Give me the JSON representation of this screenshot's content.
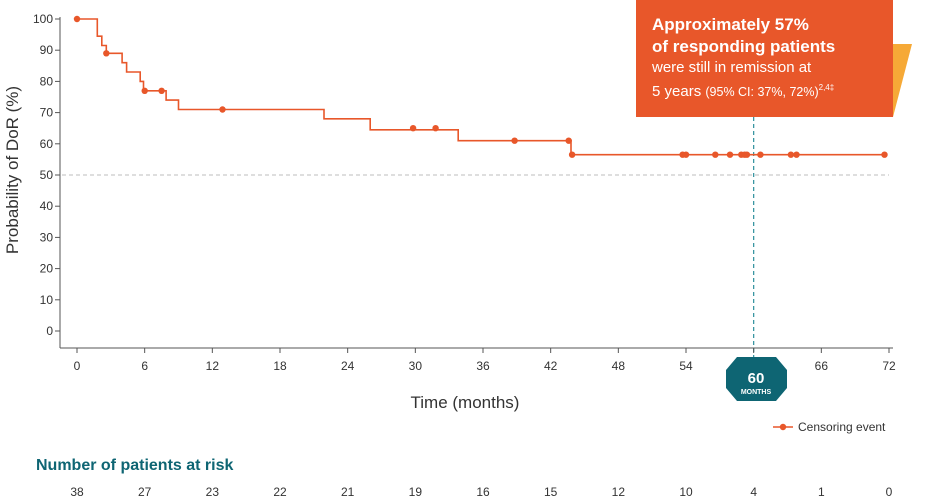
{
  "chart_data": {
    "type": "line",
    "title": "",
    "xlabel": "Time (months)",
    "ylabel": "Probability of DoR (%)",
    "xlim": [
      0,
      72
    ],
    "ylim": [
      0,
      100
    ],
    "x_ticks": [
      0,
      6,
      12,
      18,
      24,
      30,
      36,
      42,
      48,
      54,
      60,
      66,
      72
    ],
    "y_ticks": [
      0,
      10,
      20,
      30,
      40,
      50,
      60,
      70,
      80,
      90,
      100
    ],
    "reference_line_y": 50,
    "reference_line_x": 60,
    "series": [
      {
        "name": "",
        "color": "#e8572a",
        "steps": [
          [
            0,
            100
          ],
          [
            1.8,
            94.5
          ],
          [
            2.2,
            91.5
          ],
          [
            2.6,
            89
          ],
          [
            4,
            86
          ],
          [
            4.4,
            83
          ],
          [
            5.6,
            80
          ],
          [
            5.9,
            77
          ],
          [
            7.9,
            74
          ],
          [
            9,
            71
          ],
          [
            21.9,
            68
          ],
          [
            26,
            64.5
          ],
          [
            33.8,
            61
          ],
          [
            43.8,
            56.5
          ],
          [
            71.6,
            56.5
          ]
        ],
        "censored": [
          [
            0,
            100
          ],
          [
            2.6,
            89
          ],
          [
            6,
            77
          ],
          [
            7.5,
            77
          ],
          [
            12.9,
            71
          ],
          [
            29.8,
            65
          ],
          [
            31.8,
            65
          ],
          [
            38.8,
            61
          ],
          [
            43.6,
            61
          ],
          [
            43.9,
            56.5
          ],
          [
            53.7,
            56.5
          ],
          [
            54,
            56.5
          ],
          [
            56.6,
            56.5
          ],
          [
            57.9,
            56.5
          ],
          [
            58.9,
            56.5
          ],
          [
            59.2,
            56.5
          ],
          [
            59.4,
            56.5
          ],
          [
            60.6,
            56.5
          ],
          [
            63.3,
            56.5
          ],
          [
            63.8,
            56.5
          ],
          [
            71.6,
            56.5
          ]
        ]
      }
    ],
    "legend": {
      "position": "bottom-right",
      "label": "Censoring event"
    }
  },
  "callout": {
    "line1": "Approximately 57%",
    "line2": "of responding patients",
    "line3": "were still in remission at",
    "line4_main": "5 years",
    "line4_ci": "(95% CI: 37%, 72%)",
    "line4_ref": "2,4‡",
    "color": "#e8572a",
    "accent_color": "#f6a937"
  },
  "badge": {
    "number": "60",
    "unit": "MONTHS",
    "color": "#0e6573"
  },
  "risk_table": {
    "title": "Number of patients at risk",
    "values": [
      "38",
      "27",
      "23",
      "22",
      "21",
      "19",
      "16",
      "15",
      "12",
      "10",
      "4",
      "1",
      "0"
    ]
  }
}
